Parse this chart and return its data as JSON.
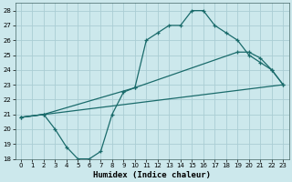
{
  "xlabel": "Humidex (Indice chaleur)",
  "bg_color": "#cce8ec",
  "grid_color": "#aacdd4",
  "line_color": "#1a6b6b",
  "xlim": [
    -0.5,
    23.5
  ],
  "ylim": [
    18,
    28.5
  ],
  "xticks": [
    0,
    1,
    2,
    3,
    4,
    5,
    6,
    7,
    8,
    9,
    10,
    11,
    12,
    13,
    14,
    15,
    16,
    17,
    18,
    19,
    20,
    21,
    22,
    23
  ],
  "yticks": [
    18,
    19,
    20,
    21,
    22,
    23,
    24,
    25,
    26,
    27,
    28
  ],
  "line1_x": [
    0,
    2,
    3,
    4,
    5,
    6,
    7,
    8,
    9,
    10,
    11,
    12,
    13,
    14,
    15,
    16,
    17,
    18,
    19,
    20,
    21,
    22,
    23
  ],
  "line1_y": [
    20.8,
    21.0,
    20.0,
    18.8,
    18.0,
    18.0,
    18.5,
    21.0,
    22.5,
    22.8,
    26.0,
    26.5,
    27.0,
    27.0,
    28.0,
    28.0,
    27.0,
    26.5,
    26.0,
    25.0,
    24.5,
    24.0,
    23.0
  ],
  "line2_x": [
    0,
    23
  ],
  "line2_y": [
    20.8,
    23.0
  ],
  "line3_x": [
    0,
    2,
    10,
    19,
    20,
    21,
    22,
    23
  ],
  "line3_y": [
    20.8,
    21.0,
    22.8,
    25.2,
    25.2,
    24.8,
    24.0,
    23.0
  ]
}
